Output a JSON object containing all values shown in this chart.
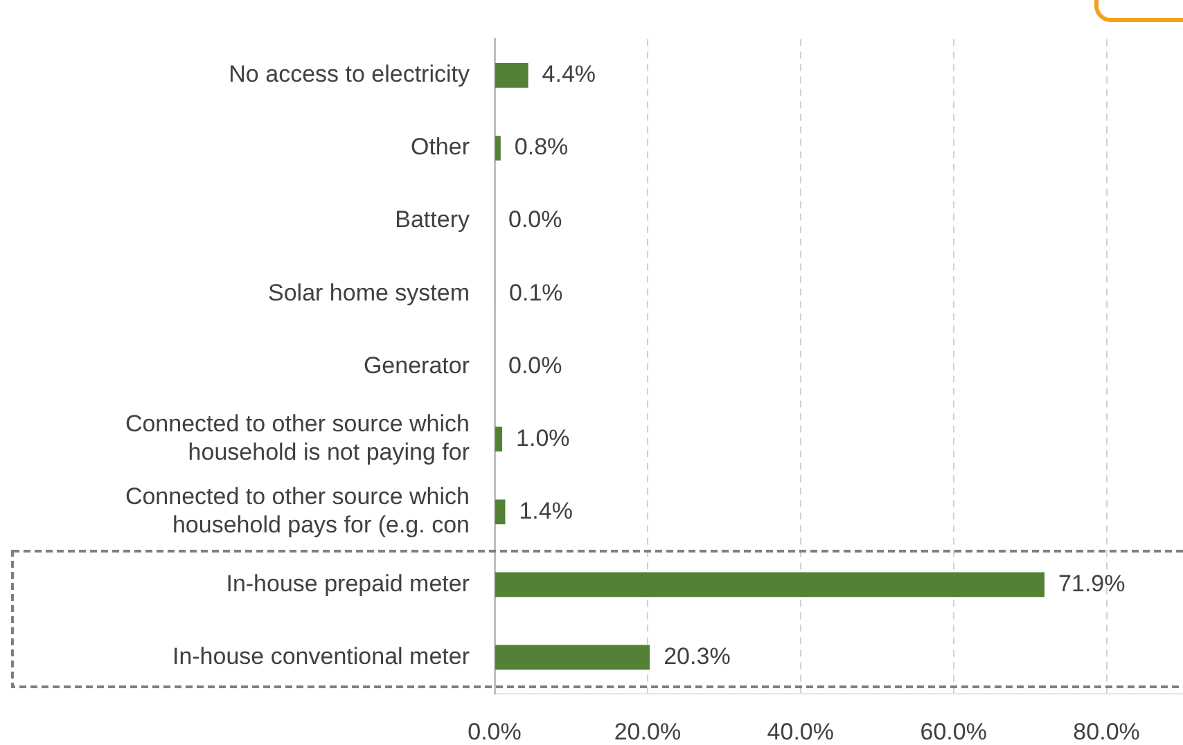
{
  "chart_data": {
    "type": "bar",
    "orientation": "horizontal",
    "categories": [
      "No access to electricity",
      "Other",
      "Battery",
      "Solar home system",
      "Generator",
      "Connected to other source which household is not paying for",
      "Connected to other source which household pays for (e.g. con",
      "In-house prepaid meter",
      "In-house conventional meter"
    ],
    "values": [
      4.4,
      0.8,
      0.0,
      0.1,
      0.0,
      1.0,
      1.4,
      71.9,
      20.3
    ],
    "value_labels": [
      "4.4%",
      "0.8%",
      "0.0%",
      "0.1%",
      "0.0%",
      "1.0%",
      "1.4%",
      "71.9%",
      "20.3%"
    ],
    "color": "#538135",
    "xlim": [
      0,
      90
    ],
    "xticks": [
      {
        "value": 0,
        "label": "0.0%"
      },
      {
        "value": 20,
        "label": "20.0%"
      },
      {
        "value": 40,
        "label": "40.0%"
      },
      {
        "value": 60,
        "label": "60.0%"
      },
      {
        "value": 80,
        "label": "80.0%"
      }
    ],
    "grid": "x",
    "legend": false
  }
}
